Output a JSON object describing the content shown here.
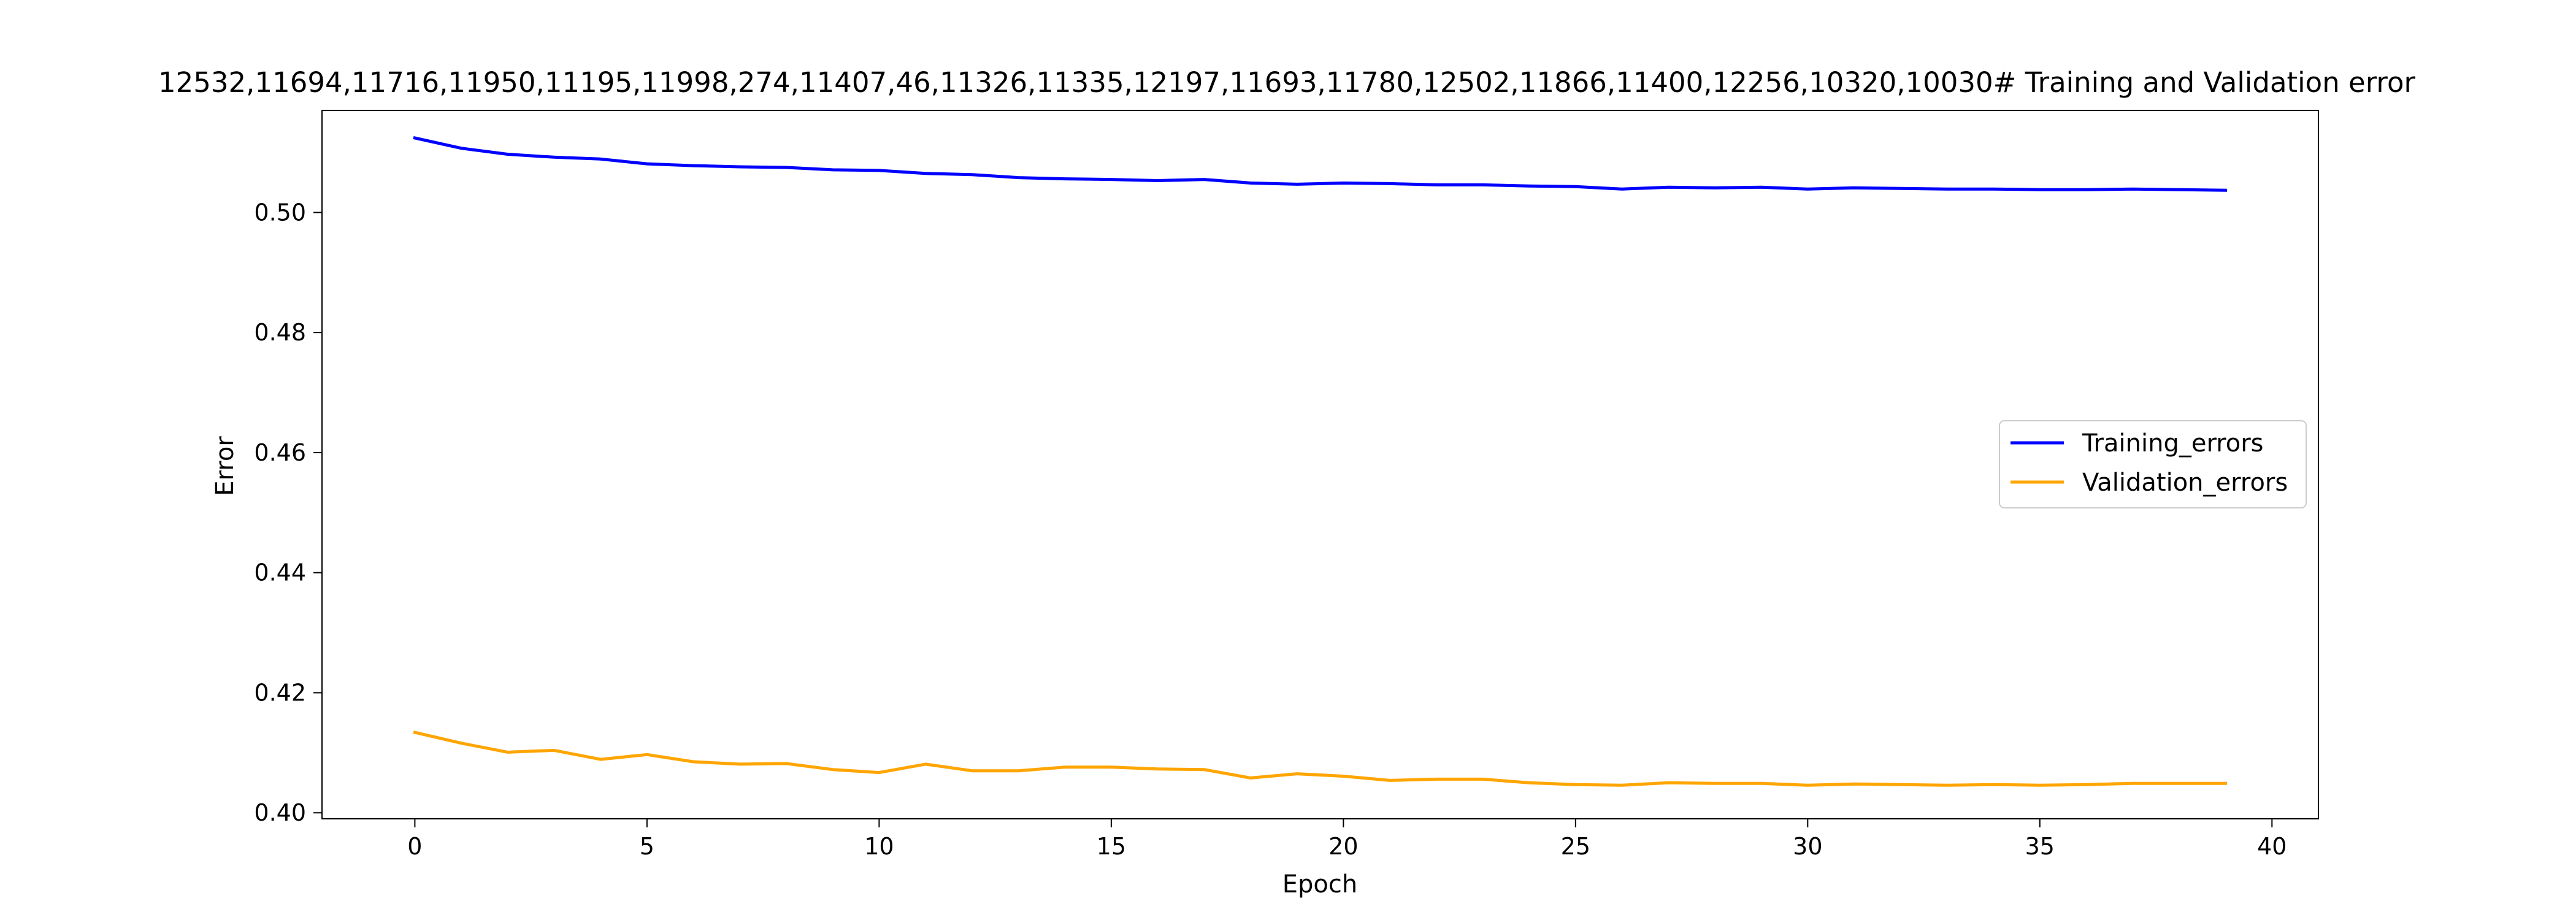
{
  "chart_data": {
    "type": "line",
    "title": "12532,11694,11716,11950,11195,11998,274,11407,46,11326,11335,12197,11693,11780,12502,11866,11400,12256,10320,10030# Training and Validation error",
    "xlabel": "Epoch",
    "ylabel": "Error",
    "xlim": [
      -2,
      41
    ],
    "ylim": [
      0.399,
      0.517
    ],
    "x_ticks": [
      0,
      5,
      10,
      15,
      20,
      25,
      30,
      35,
      40
    ],
    "y_ticks": [
      0.4,
      0.42,
      0.44,
      0.46,
      0.48,
      0.5
    ],
    "grid": false,
    "legend_position": "center-right",
    "x": [
      0,
      1,
      2,
      3,
      4,
      5,
      6,
      7,
      8,
      9,
      10,
      11,
      12,
      13,
      14,
      15,
      16,
      17,
      18,
      19,
      20,
      21,
      22,
      23,
      24,
      25,
      26,
      27,
      28,
      29,
      30,
      31,
      32,
      33,
      34,
      35,
      36,
      37,
      38,
      39
    ],
    "series": [
      {
        "name": "Training_errors",
        "color": "#0000ff",
        "values": [
          0.5124,
          0.5107,
          0.5097,
          0.5092,
          0.5089,
          0.5081,
          0.5078,
          0.5076,
          0.5075,
          0.5071,
          0.507,
          0.5065,
          0.5063,
          0.5058,
          0.5056,
          0.5055,
          0.5053,
          0.5055,
          0.5049,
          0.5047,
          0.5049,
          0.5048,
          0.5046,
          0.5046,
          0.5044,
          0.5043,
          0.5039,
          0.5042,
          0.5041,
          0.5042,
          0.5039,
          0.5041,
          0.504,
          0.5039,
          0.5039,
          0.5038,
          0.5038,
          0.5039,
          0.5038,
          0.5037
        ]
      },
      {
        "name": "Validation_errors",
        "color": "#ffa500",
        "values": [
          0.4134,
          0.4116,
          0.4101,
          0.4104,
          0.4089,
          0.4097,
          0.4085,
          0.4081,
          0.4082,
          0.4072,
          0.4067,
          0.4081,
          0.407,
          0.407,
          0.4076,
          0.4076,
          0.4073,
          0.4072,
          0.4058,
          0.4065,
          0.4061,
          0.4054,
          0.4056,
          0.4056,
          0.405,
          0.4047,
          0.4046,
          0.405,
          0.4049,
          0.4049,
          0.4046,
          0.4048,
          0.4047,
          0.4046,
          0.4047,
          0.4046,
          0.4047,
          0.4049,
          0.4049,
          0.4049
        ]
      }
    ]
  }
}
